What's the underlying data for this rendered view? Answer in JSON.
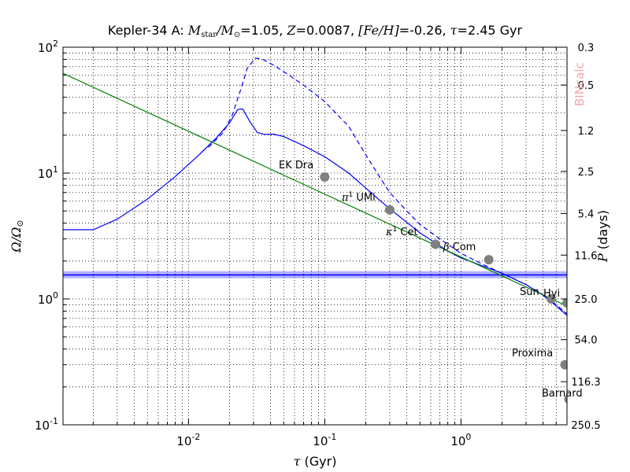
{
  "chart_data": {
    "type": "line",
    "title_parts": [
      "Kepler-34 A: ",
      "M",
      "star",
      "/M",
      "⊙",
      "=1.05, ",
      "Z",
      "=0.0087, ",
      "[Fe/H]",
      "=-0.26, ",
      "τ",
      "=2.45 Gyr"
    ],
    "xlabel_parts": [
      "τ",
      " (Gyr)"
    ],
    "ylabel_parts": [
      "Ω/Ω",
      "⊙"
    ],
    "y2label_parts": [
      "P",
      " (days)"
    ],
    "watermark": "BINcalc",
    "xscale": "log",
    "yscale": "log",
    "xlim": [
      0.0012,
      6.0
    ],
    "ylim": [
      0.1,
      100
    ],
    "grid": true,
    "x_ticks": [
      {
        "value": 0.01,
        "base": "10",
        "exp": "-2"
      },
      {
        "value": 0.1,
        "base": "10",
        "exp": "-1"
      },
      {
        "value": 1,
        "base": "10",
        "exp": "0"
      }
    ],
    "y_ticks": [
      {
        "value": 0.1,
        "base": "10",
        "exp": "-1"
      },
      {
        "value": 1,
        "base": "10",
        "exp": "0"
      },
      {
        "value": 10,
        "base": "10",
        "exp": "1"
      },
      {
        "value": 100,
        "base": "10",
        "exp": "2"
      }
    ],
    "right_ticks": [
      {
        "omega": 100,
        "label": "0.3"
      },
      {
        "omega": 50,
        "label": "0.5"
      },
      {
        "omega": 21.8,
        "label": "1.2"
      },
      {
        "omega": 10.3,
        "label": "2.5"
      },
      {
        "omega": 4.77,
        "label": "5.4"
      },
      {
        "omega": 2.23,
        "label": "11.6"
      },
      {
        "omega": 1.0,
        "label": "25.0"
      },
      {
        "omega": 0.475,
        "label": "54.0"
      },
      {
        "omega": 0.22,
        "label": "116.3"
      },
      {
        "omega": 0.1,
        "label": "250.5"
      }
    ],
    "horizontal_band": {
      "value": 1.55,
      "lower": 1.46,
      "upper": 1.66,
      "color": "#0000ff"
    },
    "series": [
      {
        "style": "solid",
        "color": "#0000ff",
        "points": [
          [
            0.0012,
            3.55
          ],
          [
            0.002,
            3.55
          ],
          [
            0.003,
            4.3
          ],
          [
            0.005,
            6.2
          ],
          [
            0.008,
            9.4
          ],
          [
            0.012,
            14.0
          ],
          [
            0.016,
            19.0
          ],
          [
            0.02,
            25.0
          ],
          [
            0.023,
            32.0
          ],
          [
            0.025,
            32.3
          ],
          [
            0.028,
            26.0
          ],
          [
            0.032,
            21.0
          ],
          [
            0.036,
            20.3
          ],
          [
            0.042,
            20.4
          ],
          [
            0.05,
            19.5
          ],
          [
            0.07,
            16.5
          ],
          [
            0.1,
            13.5
          ],
          [
            0.15,
            10.0
          ],
          [
            0.2,
            7.6
          ],
          [
            0.3,
            5.2
          ],
          [
            0.5,
            3.35
          ],
          [
            0.8,
            2.4
          ],
          [
            1.0,
            2.12
          ],
          [
            1.5,
            1.8
          ],
          [
            2.0,
            1.6
          ],
          [
            3.0,
            1.3
          ],
          [
            4.0,
            1.07
          ],
          [
            5.0,
            0.88
          ],
          [
            6.0,
            0.74
          ]
        ]
      },
      {
        "style": "dashed",
        "color": "#0000ff",
        "points": [
          [
            0.014,
            16.0
          ],
          [
            0.018,
            21.0
          ],
          [
            0.021,
            29.0
          ],
          [
            0.024,
            45.0
          ],
          [
            0.027,
            68.0
          ],
          [
            0.031,
            82.0
          ],
          [
            0.035,
            80.0
          ],
          [
            0.042,
            72.0
          ],
          [
            0.05,
            64.0
          ],
          [
            0.07,
            50.0
          ],
          [
            0.1,
            37.0
          ],
          [
            0.15,
            23.5
          ],
          [
            0.2,
            14.0
          ],
          [
            0.25,
            9.5
          ],
          [
            0.3,
            7.0
          ],
          [
            0.4,
            5.0
          ],
          [
            0.5,
            3.9
          ],
          [
            0.7,
            3.0
          ],
          [
            1.0,
            2.3
          ],
          [
            1.5,
            1.85
          ],
          [
            2.0,
            1.6
          ],
          [
            3.0,
            1.3
          ],
          [
            4.0,
            1.08
          ],
          [
            5.0,
            0.9
          ],
          [
            6.0,
            0.76
          ]
        ]
      },
      {
        "style": "solid",
        "color": "#008000",
        "points": [
          [
            0.0012,
            62.0
          ],
          [
            6.0,
            0.88
          ]
        ]
      }
    ],
    "stars": [
      {
        "parts": [
          "EK Dra"
        ],
        "x": 0.1,
        "y": 9.3
      },
      {
        "parts": [
          "π",
          "1",
          " UMi"
        ],
        "x": 0.3,
        "y": 5.1
      },
      {
        "parts": [
          "κ",
          "1",
          " Cet"
        ],
        "x": 0.65,
        "y": 2.72
      },
      {
        "parts": [
          "β",
          " Com"
        ],
        "x": 1.6,
        "y": 2.05
      },
      {
        "parts": [
          "Sun"
        ],
        "x": 4.6,
        "y": 1.0
      },
      {
        "parts": [
          "Hyi"
        ],
        "x": 6.0,
        "y": 0.93
      },
      {
        "parts": [
          "Proxima"
        ],
        "x": 5.8,
        "y": 0.3
      },
      {
        "parts": [
          "Barnard"
        ],
        "x": 6.2,
        "y": 0.16
      }
    ]
  }
}
